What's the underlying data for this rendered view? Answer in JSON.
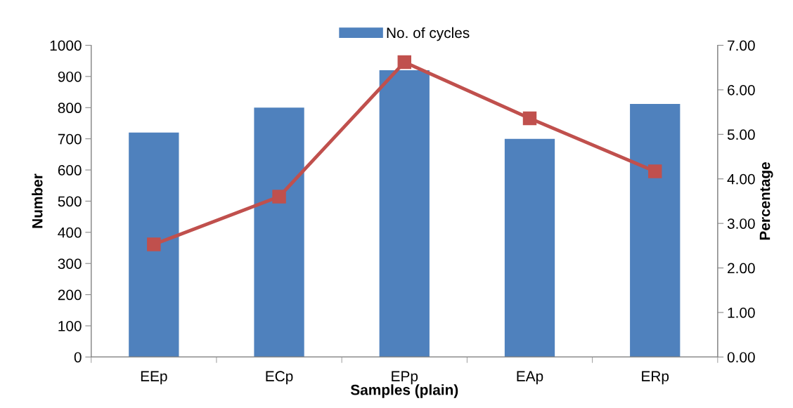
{
  "chart_data": {
    "type": "bar",
    "xlabel": "Samples (plain)",
    "ylabel": "Number",
    "y2label": "Percentage",
    "categories": [
      "EEp",
      "ECp",
      "EPp",
      "EAp",
      "ERp"
    ],
    "series": [
      {
        "name": "No. of cycles",
        "color": "#4f81bd",
        "values": [
          720,
          800,
          920,
          700,
          812
        ]
      },
      {
        "type": "line",
        "axis": "y2",
        "color": "#c0504d",
        "marker": "square",
        "values": [
          2.53,
          3.6,
          6.62,
          5.36,
          4.17
        ]
      }
    ],
    "ylim": [
      0,
      1000
    ],
    "yticks": [
      0,
      100,
      200,
      300,
      400,
      500,
      600,
      700,
      800,
      900,
      1000
    ],
    "y2lim": [
      0,
      7
    ],
    "y2ticks": [
      {
        "value": 0,
        "label": "0.00"
      },
      {
        "value": 1,
        "label": "1.00"
      },
      {
        "value": 2,
        "label": "2.00"
      },
      {
        "value": 3,
        "label": "3.00"
      },
      {
        "value": 4,
        "label": "4.00"
      },
      {
        "value": 5,
        "label": "5.00"
      },
      {
        "value": 6,
        "label": "6.00"
      },
      {
        "value": 7,
        "label": "7.00"
      }
    ],
    "grid": false,
    "legend": "top"
  }
}
